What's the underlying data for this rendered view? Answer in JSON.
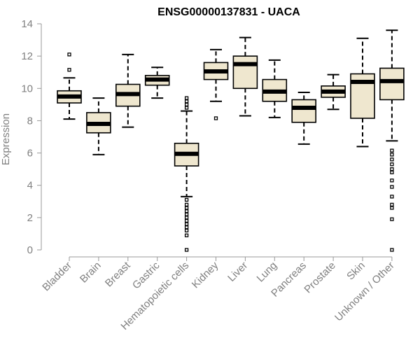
{
  "chart_data": {
    "type": "boxplot",
    "title": "ENSG00000137831 - UACA",
    "xlabel": "",
    "ylabel": "Expression",
    "ylim": [
      0,
      14
    ],
    "yticks": [
      0,
      2,
      4,
      6,
      8,
      10,
      12,
      14
    ],
    "grid": false,
    "colors": {
      "box_fill": "#efe7cf",
      "stroke": "#000000",
      "axis_text": "#808080",
      "title": "#000000"
    },
    "categories": [
      "Bladder",
      "Brain",
      "Breast",
      "Gastric",
      "Hematopoietic cells",
      "Kidney",
      "Liver",
      "Lung",
      "Pancreas",
      "Prostate",
      "Skin",
      "Unknown / Other"
    ],
    "series": [
      {
        "name": "Bladder",
        "whisker_low": 8.1,
        "q1": 9.1,
        "median": 9.5,
        "q3": 9.85,
        "whisker_high": 10.65,
        "outliers": [
          11.15,
          12.1
        ]
      },
      {
        "name": "Brain",
        "whisker_low": 5.9,
        "q1": 7.25,
        "median": 7.8,
        "q3": 8.5,
        "whisker_high": 9.4,
        "outliers": []
      },
      {
        "name": "Breast",
        "whisker_low": 7.6,
        "q1": 8.9,
        "median": 9.65,
        "q3": 10.25,
        "whisker_high": 12.1,
        "outliers": []
      },
      {
        "name": "Gastric",
        "whisker_low": 9.4,
        "q1": 10.2,
        "median": 10.55,
        "q3": 10.8,
        "whisker_high": 11.3,
        "outliers": []
      },
      {
        "name": "Hematopoietic cells",
        "whisker_low": 3.3,
        "q1": 5.2,
        "median": 5.95,
        "q3": 6.6,
        "whisker_high": 8.6,
        "outliers": [
          0.0,
          0.9,
          1.2,
          1.4,
          1.6,
          1.8,
          2.0,
          2.2,
          2.4,
          2.6,
          2.8,
          3.1,
          8.8,
          9.0,
          9.2,
          9.4
        ]
      },
      {
        "name": "Kidney",
        "whisker_low": 9.2,
        "q1": 10.55,
        "median": 11.05,
        "q3": 11.6,
        "whisker_high": 12.4,
        "outliers": [
          8.15
        ]
      },
      {
        "name": "Liver",
        "whisker_low": 8.3,
        "q1": 10.0,
        "median": 11.5,
        "q3": 12.0,
        "whisker_high": 13.15,
        "outliers": []
      },
      {
        "name": "Lung",
        "whisker_low": 8.2,
        "q1": 9.2,
        "median": 9.8,
        "q3": 10.55,
        "whisker_high": 11.75,
        "outliers": []
      },
      {
        "name": "Pancreas",
        "whisker_low": 6.55,
        "q1": 7.9,
        "median": 8.8,
        "q3": 9.3,
        "whisker_high": 9.75,
        "outliers": []
      },
      {
        "name": "Prostate",
        "whisker_low": 8.7,
        "q1": 9.45,
        "median": 9.8,
        "q3": 10.15,
        "whisker_high": 10.85,
        "outliers": []
      },
      {
        "name": "Skin",
        "whisker_low": 6.4,
        "q1": 8.15,
        "median": 10.4,
        "q3": 10.9,
        "whisker_high": 13.1,
        "outliers": []
      },
      {
        "name": "Unknown / Other",
        "whisker_low": 6.75,
        "q1": 9.3,
        "median": 10.45,
        "q3": 11.25,
        "whisker_high": 13.6,
        "outliers": [
          0.0,
          1.9,
          2.6,
          2.8,
          3.3,
          3.9,
          4.3,
          4.8,
          5.0,
          5.3,
          5.6,
          5.9,
          6.15
        ]
      }
    ]
  }
}
